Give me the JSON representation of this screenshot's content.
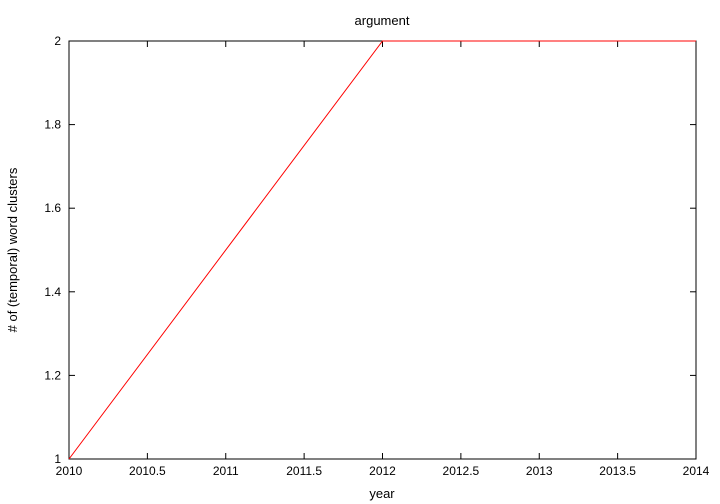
{
  "chart_data": {
    "type": "line",
    "title": "argument",
    "xlabel": "year",
    "ylabel": "# of (temporal) word clusters",
    "xlim": [
      2010,
      2014
    ],
    "ylim": [
      1,
      2
    ],
    "x_ticks": [
      "2010",
      "2010.5",
      "2011",
      "2011.5",
      "2012",
      "2012.5",
      "2013",
      "2013.5",
      "2014"
    ],
    "y_ticks": [
      "1",
      "1.2",
      "1.4",
      "1.6",
      "1.8",
      "2"
    ],
    "grid": false,
    "legend": "none",
    "series": [
      {
        "color": "#ff0000",
        "x": [
          2010,
          2012,
          2013,
          2014
        ],
        "y": [
          1,
          2,
          2,
          2
        ]
      }
    ]
  }
}
